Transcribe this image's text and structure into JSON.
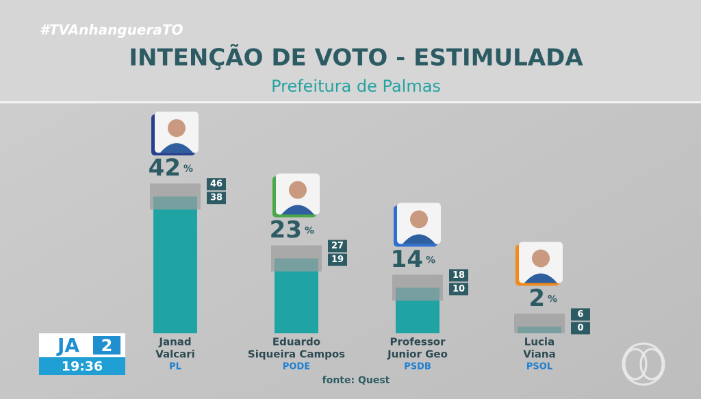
{
  "hashtag": "#TVAnhangueraTO",
  "chart_data": {
    "type": "bar",
    "title": "INTENÇÃO DE VOTO - ESTIMULADA",
    "subtitle": "Prefeitura de Palmas",
    "categories": [
      [
        "Janad",
        "Valcari"
      ],
      [
        "Eduardo",
        "Siqueira Campos"
      ],
      [
        "Professor",
        "Junior Geo"
      ],
      [
        "Lucia",
        "Viana"
      ]
    ],
    "parties": [
      "PL",
      "PODE",
      "PSDB",
      "PSOL"
    ],
    "values": [
      42,
      23,
      14,
      2
    ],
    "unit": "%",
    "upper": [
      46,
      27,
      18,
      6
    ],
    "lower": [
      38,
      19,
      10,
      0
    ],
    "color": "#20a3a3",
    "range_color": "#9d9d9d",
    "ylim": [
      0,
      70
    ],
    "source": "fonte: Quest"
  },
  "logo": {
    "text": "JA",
    "number": "2",
    "time": "19:36"
  }
}
